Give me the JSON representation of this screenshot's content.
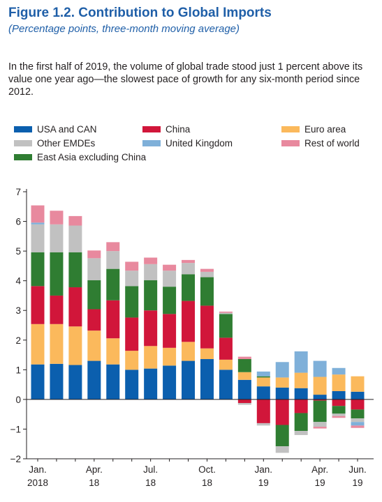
{
  "header": {
    "title": "Figure 1.2.  Contribution to Global Imports",
    "subtitle": "(Percentage points, three-month moving average)",
    "description": "In the first half of 2019, the volume of global trade stood just 1 percent above its value one year ago—the slowest pace of growth for any six-month period since 2012."
  },
  "chart_data": {
    "type": "bar",
    "stacked": true,
    "ylim": [
      -2,
      7
    ],
    "yticks": [
      -2,
      -1,
      0,
      1,
      2,
      3,
      4,
      5,
      6,
      7
    ],
    "grid": false,
    "legend_position": "top",
    "categories": [
      "Jan 2018",
      "Feb 2018",
      "Mar 2018",
      "Apr 2018",
      "May 2018",
      "Jun 2018",
      "Jul 2018",
      "Aug 2018",
      "Sep 2018",
      "Oct 2018",
      "Nov 2018",
      "Dec 2018",
      "Jan 2019",
      "Feb 2019",
      "Mar 2019",
      "Apr 2019",
      "May 2019",
      "Jun 2019"
    ],
    "x_tick_labels": [
      {
        "line1": "Jan.",
        "line2": "2018",
        "index": 0
      },
      {
        "line1": "Apr.",
        "line2": "18",
        "index": 3
      },
      {
        "line1": "Jul.",
        "line2": "18",
        "index": 6
      },
      {
        "line1": "Oct.",
        "line2": "18",
        "index": 9
      },
      {
        "line1": "Jan.",
        "line2": "19",
        "index": 12
      },
      {
        "line1": "Apr.",
        "line2": "19",
        "index": 15
      },
      {
        "line1": "Jun.",
        "line2": "19",
        "index": 17
      }
    ],
    "series": [
      {
        "name": "USA and CAN",
        "color": "#0b5fae",
        "values": [
          1.18,
          1.2,
          1.16,
          1.3,
          1.18,
          1.0,
          1.04,
          1.14,
          1.3,
          1.36,
          1.0,
          0.66,
          0.44,
          0.4,
          0.38,
          0.16,
          0.28,
          0.26
        ]
      },
      {
        "name": "Euro area",
        "color": "#fbb95c",
        "values": [
          1.36,
          1.34,
          1.3,
          1.02,
          0.88,
          0.64,
          0.76,
          0.6,
          0.64,
          0.36,
          0.34,
          0.26,
          0.3,
          0.34,
          0.52,
          0.6,
          0.56,
          0.52
        ]
      },
      {
        "name": "China",
        "color": "#d1163a",
        "values": [
          1.28,
          0.96,
          1.32,
          0.72,
          1.28,
          1.12,
          1.2,
          1.14,
          1.38,
          1.44,
          0.74,
          -0.12,
          -0.8,
          -0.86,
          -0.46,
          -0.04,
          -0.22,
          -0.34
        ]
      },
      {
        "name": "East Asia excluding China",
        "color": "#2f7d32",
        "values": [
          1.14,
          1.46,
          1.18,
          0.98,
          1.06,
          1.06,
          1.02,
          0.92,
          0.9,
          0.96,
          0.8,
          0.44,
          0.04,
          -0.72,
          -0.6,
          -0.72,
          -0.26,
          -0.3
        ]
      },
      {
        "name": "Other EMDEs",
        "color": "#c1c1c1",
        "values": [
          0.94,
          0.94,
          0.9,
          0.74,
          0.6,
          0.52,
          0.54,
          0.54,
          0.38,
          0.18,
          0.04,
          -0.06,
          -0.08,
          -0.22,
          -0.14,
          -0.16,
          -0.08,
          -0.12
        ]
      },
      {
        "name": "United Kingdom",
        "color": "#7fb0d9",
        "values": [
          0.06,
          0.0,
          0.0,
          0.0,
          0.0,
          0.0,
          0.0,
          0.0,
          0.0,
          0.0,
          0.0,
          0.0,
          0.16,
          0.52,
          0.72,
          0.54,
          0.22,
          -0.12
        ]
      },
      {
        "name": "Rest of world",
        "color": "#e8899e",
        "values": [
          0.58,
          0.46,
          0.32,
          0.26,
          0.3,
          0.3,
          0.22,
          0.2,
          0.1,
          0.1,
          0.04,
          0.08,
          0.0,
          0.0,
          0.0,
          -0.06,
          -0.06,
          -0.08
        ]
      }
    ]
  },
  "legend": {
    "items": [
      {
        "label": "USA and CAN",
        "color": "#0b5fae"
      },
      {
        "label": "China",
        "color": "#d1163a"
      },
      {
        "label": "Euro area",
        "color": "#fbb95c"
      },
      {
        "label": "Other EMDEs",
        "color": "#c1c1c1"
      },
      {
        "label": "United Kingdom",
        "color": "#7fb0d9"
      },
      {
        "label": "Rest of world",
        "color": "#e8899e"
      },
      {
        "label": "East Asia excluding China",
        "color": "#2f7d32"
      }
    ]
  }
}
